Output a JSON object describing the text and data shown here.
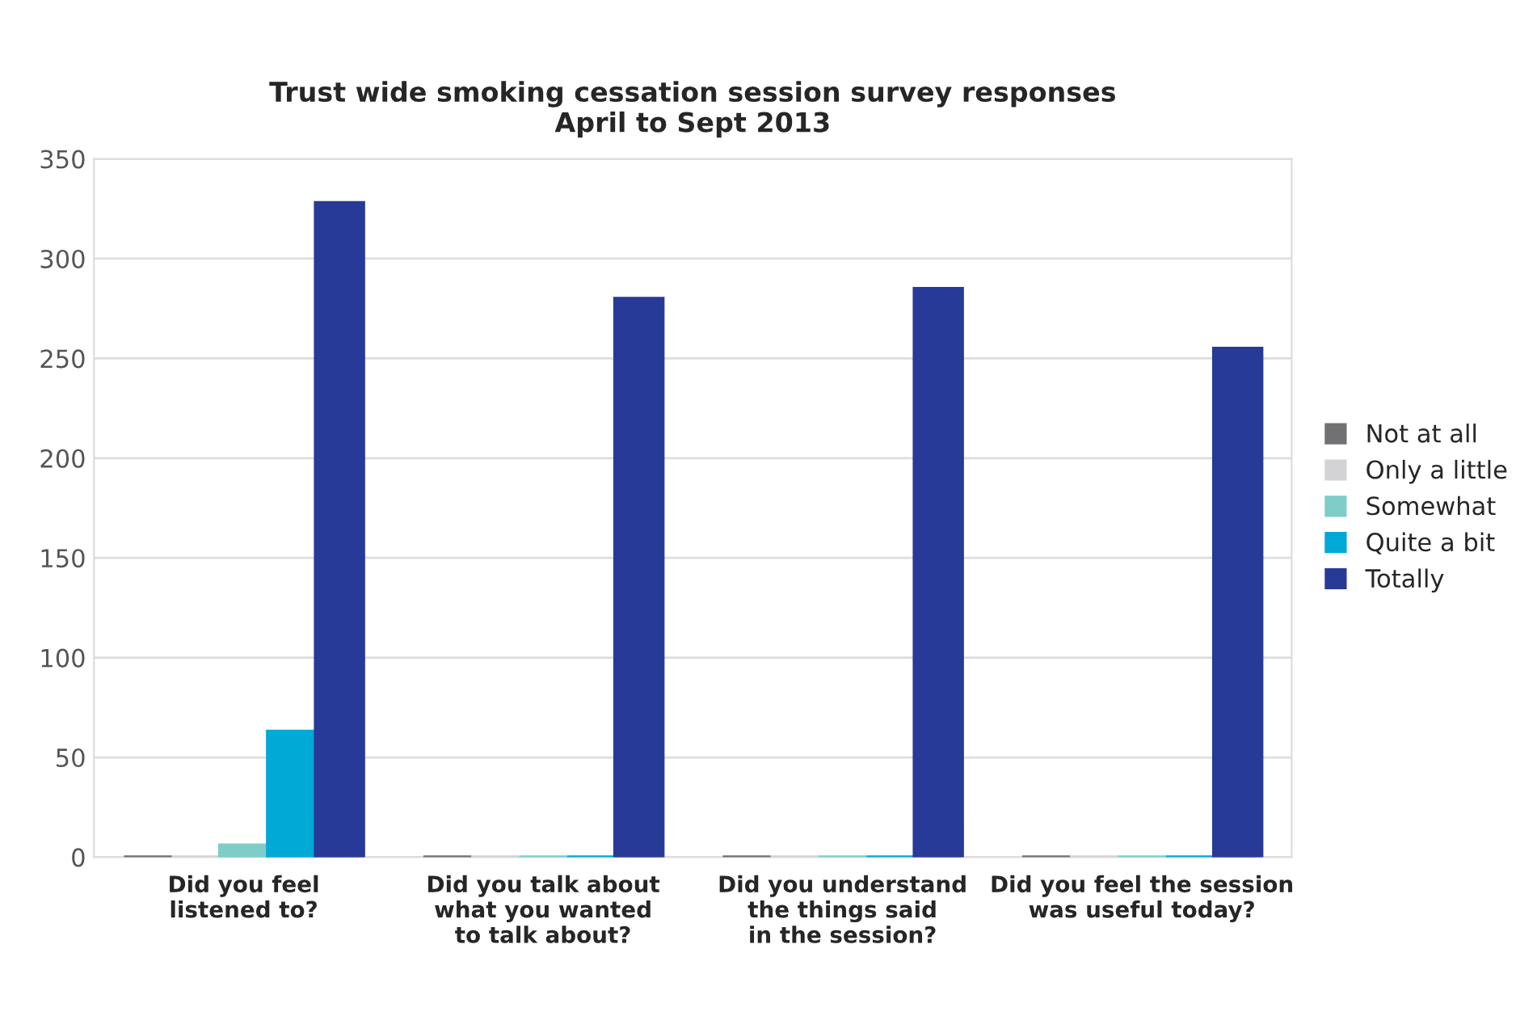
{
  "chart_data": {
    "type": "bar",
    "title": "Trust wide smoking cessation session survey responses\nApril to Sept 2013",
    "categories": [
      "Did you feel\nlistened to?",
      "Did you talk about\nwhat you wanted\nto talk about?",
      "Did you understand\nthe things said\nin the session?",
      "Did you feel the session\nwas useful today?"
    ],
    "series": [
      {
        "name": "Not at all",
        "color": "#717174",
        "values": [
          0,
          0,
          0,
          0
        ]
      },
      {
        "name": "Only a little",
        "color": "#d3d3d5",
        "values": [
          0,
          0,
          0,
          0
        ]
      },
      {
        "name": "Somewhat",
        "color": "#7fcdc8",
        "values": [
          6,
          0,
          0,
          0
        ]
      },
      {
        "name": "Quite a bit",
        "color": "#00a9d6",
        "values": [
          63,
          0,
          0,
          0
        ]
      },
      {
        "name": "Totally",
        "color": "#283a97",
        "values": [
          328,
          280,
          285,
          255
        ]
      }
    ],
    "ylim": [
      0,
      350
    ],
    "yticks": [
      0,
      50,
      100,
      150,
      200,
      250,
      300,
      350
    ],
    "grid": "y",
    "legend": "right"
  }
}
